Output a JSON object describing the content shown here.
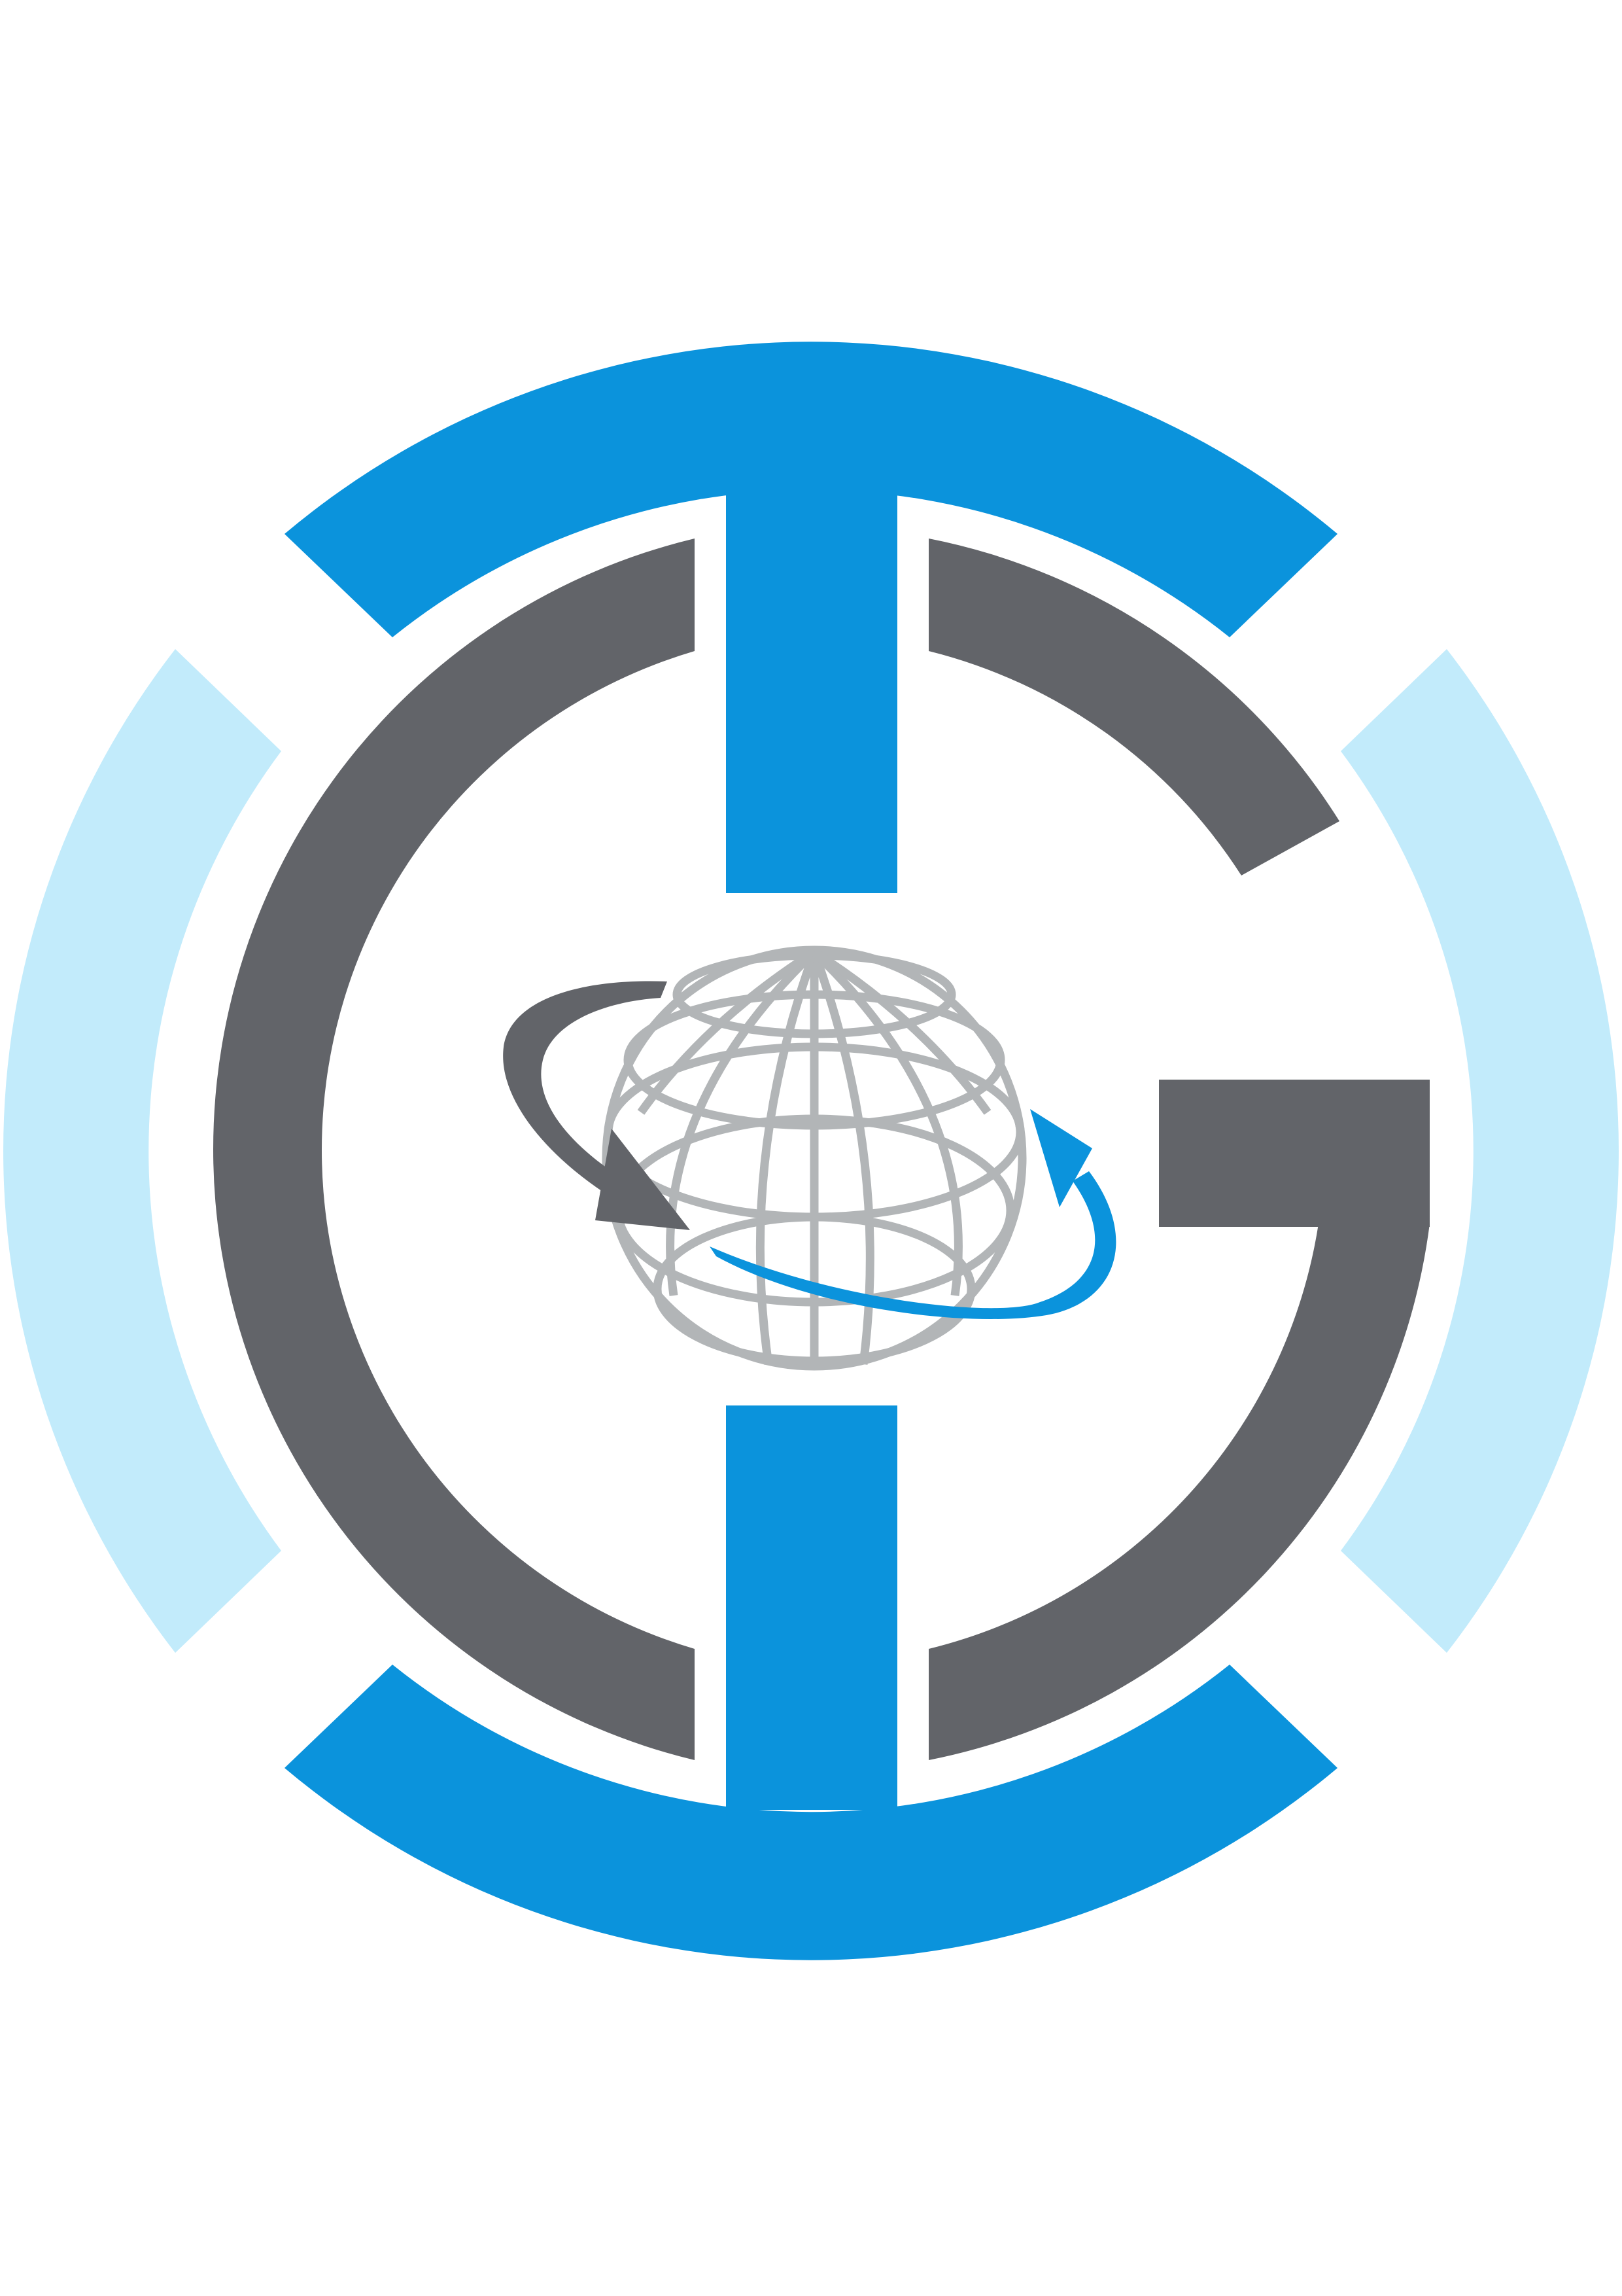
{
  "logo": {
    "colors": {
      "background": "#ffffff",
      "outer_ring_blue": "#0b93dc",
      "outer_ring_light_blue": "#c2ebfb",
      "inner_mark_gray": "#626469",
      "globe_gray": "#b2b5b7",
      "orbit_arrow_gray": "#626469",
      "orbit_arrow_blue": "#0b93dc"
    },
    "icons": {
      "outer_ring": "segmented-ring-icon",
      "monogram": "letter-c-and-g-monogram-icon",
      "center": "globe-with-orbit-arrows-icon"
    }
  }
}
